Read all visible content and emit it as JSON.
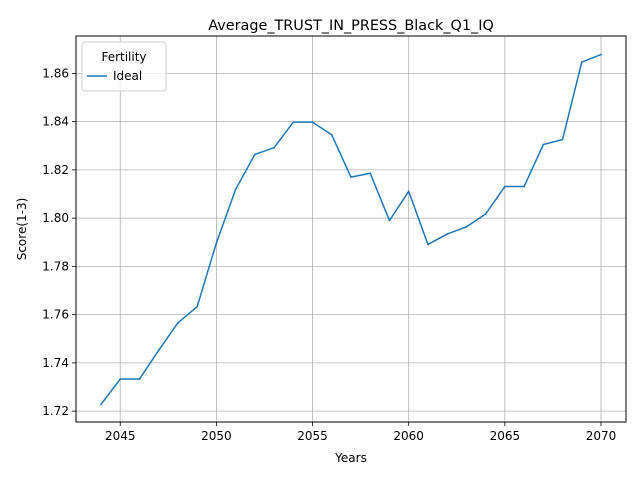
{
  "chart_data": {
    "type": "line",
    "title": "Average_TRUST_IN_PRESS_Black_Q1_IQ",
    "xlabel": "Years",
    "ylabel": "Score(1-3)",
    "xlim": [
      2042.7,
      2071.3
    ],
    "ylim": [
      1.7155,
      1.8755
    ],
    "xticks": [
      2045,
      2050,
      2055,
      2060,
      2065,
      2070
    ],
    "yticks": [
      1.72,
      1.74,
      1.76,
      1.78,
      1.8,
      1.82,
      1.84,
      1.86
    ],
    "ytick_labels": [
      "1.72",
      "1.74",
      "1.76",
      "1.78",
      "1.80",
      "1.82",
      "1.84",
      "1.86"
    ],
    "grid": true,
    "legend": {
      "title": "Fertility",
      "placement": "top-left"
    },
    "series": [
      {
        "name": "Ideal",
        "color": "#1f77b4",
        "x": [
          2044,
          2045,
          2046,
          2047,
          2048,
          2049,
          2050,
          2051,
          2052,
          2053,
          2054,
          2055,
          2056,
          2057,
          2058,
          2059,
          2060,
          2061,
          2062,
          2063,
          2064,
          2065,
          2066,
          2067,
          2068,
          2069,
          2070
        ],
        "y": [
          1.7228,
          1.7333,
          1.7333,
          1.7452,
          1.7566,
          1.7633,
          1.7897,
          1.8119,
          1.8264,
          1.8292,
          1.8398,
          1.8398,
          1.8345,
          1.817,
          1.8186,
          1.799,
          1.8111,
          1.7891,
          1.7934,
          1.7964,
          1.8017,
          1.8131,
          1.8131,
          1.8305,
          1.8326,
          1.8647,
          1.8678
        ]
      }
    ]
  }
}
